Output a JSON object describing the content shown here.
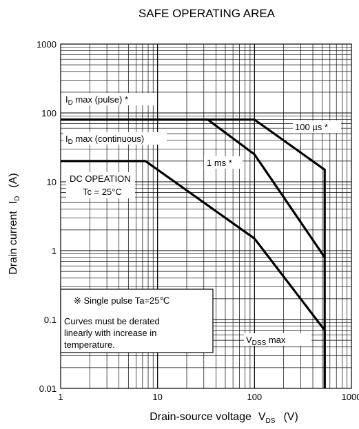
{
  "chart_data": {
    "type": "line",
    "title": "SAFE OPERATING AREA",
    "x_scale": "log",
    "y_scale": "log",
    "xlim": [
      1,
      1000
    ],
    "ylim": [
      0.01,
      1000
    ],
    "grid": true,
    "xlabel": {
      "text": "Drain-source voltage",
      "symbol": "V",
      "sub": "DS",
      "unit": "(V)"
    },
    "ylabel": {
      "text": "Drain current",
      "symbol": "I",
      "sub": "D",
      "unit": "(A)"
    },
    "x_ticks": [
      "1",
      "10",
      "100",
      "1000"
    ],
    "y_ticks": [
      "0.01",
      "0.1",
      "1",
      "10",
      "100",
      "1000"
    ],
    "series": [
      {
        "name": "DC OPEATION Tc = 25°C",
        "x": [
          1,
          7.5,
          100,
          530,
          530
        ],
        "y": [
          20,
          20,
          1.5,
          0.07,
          0.01
        ]
      },
      {
        "name": "1 ms *",
        "x": [
          1,
          33,
          100,
          530
        ],
        "y": [
          80,
          80,
          25,
          0.8
        ]
      },
      {
        "name": "100 µs *",
        "x": [
          1,
          100,
          530,
          530
        ],
        "y": [
          80,
          80,
          15,
          0.01
        ]
      }
    ],
    "annotations": {
      "id_pulse": {
        "pre": "I",
        "sub": "D",
        "post": " max (pulse) *"
      },
      "id_cont": {
        "pre": "I",
        "sub": "D",
        "post": " max (continuous)"
      },
      "us100": "100 µs *",
      "ms1": "1 ms *",
      "dc_line1": "DC OPEATION",
      "dc_line2": "Tc = 25°C",
      "vdss": {
        "pre": "V",
        "sub": "DSS",
        "post": " max"
      }
    },
    "note": {
      "header": "※ Single pulse Ta=25℃",
      "lines": [
        "Curves must be derated",
        "linearly with increase in",
        "temperature."
      ]
    }
  }
}
